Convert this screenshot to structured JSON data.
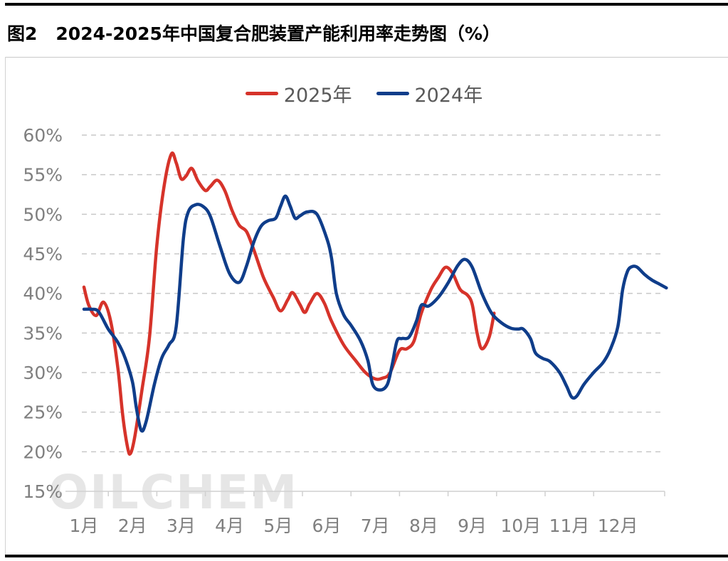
{
  "header": {
    "figure_number": "图2",
    "title": "2024-2025年中国复合肥装置产能利用率走势图（%）"
  },
  "watermark": "OILCHEM",
  "chart_data": {
    "type": "line",
    "title": "2024-2025年中国复合肥装置产能利用率走势图（%）",
    "x_tick_labels": [
      "1月",
      "2月",
      "3月",
      "4月",
      "5月",
      "6月",
      "7月",
      "8月",
      "9月",
      "10月",
      "11月",
      "12月"
    ],
    "y_tick_labels": [
      "15%",
      "20%",
      "25%",
      "30%",
      "35%",
      "40%",
      "45%",
      "50%",
      "55%",
      "60%"
    ],
    "ylim": [
      15,
      60
    ],
    "xlim": [
      1,
      13
    ],
    "x_unit": "month",
    "grid": "horizontal dashed",
    "legend_position": "top",
    "series": [
      {
        "name": "2025年",
        "color": "#d6332a",
        "points": [
          [
            1.0,
            40.8
          ],
          [
            1.1,
            38.5
          ],
          [
            1.25,
            37.2
          ],
          [
            1.4,
            38.9
          ],
          [
            1.55,
            36.5
          ],
          [
            1.7,
            30.5
          ],
          [
            1.8,
            24.5
          ],
          [
            1.9,
            20.5
          ],
          [
            1.96,
            19.8
          ],
          [
            2.05,
            22.0
          ],
          [
            2.2,
            28.0
          ],
          [
            2.35,
            34.5
          ],
          [
            2.5,
            46.0
          ],
          [
            2.65,
            53.5
          ],
          [
            2.8,
            57.6
          ],
          [
            2.9,
            56.5
          ],
          [
            3.0,
            54.5
          ],
          [
            3.1,
            54.8
          ],
          [
            3.22,
            55.8
          ],
          [
            3.35,
            54.2
          ],
          [
            3.5,
            53.0
          ],
          [
            3.6,
            53.5
          ],
          [
            3.75,
            54.3
          ],
          [
            3.9,
            53.0
          ],
          [
            4.05,
            50.5
          ],
          [
            4.2,
            48.6
          ],
          [
            4.35,
            47.8
          ],
          [
            4.5,
            45.5
          ],
          [
            4.7,
            42.0
          ],
          [
            4.9,
            39.5
          ],
          [
            5.05,
            37.8
          ],
          [
            5.2,
            39.2
          ],
          [
            5.3,
            40.1
          ],
          [
            5.45,
            38.6
          ],
          [
            5.55,
            37.6
          ],
          [
            5.65,
            38.7
          ],
          [
            5.8,
            40.0
          ],
          [
            5.95,
            38.8
          ],
          [
            6.1,
            36.5
          ],
          [
            6.35,
            33.5
          ],
          [
            6.6,
            31.5
          ],
          [
            6.8,
            30.0
          ],
          [
            7.0,
            29.2
          ],
          [
            7.15,
            29.3
          ],
          [
            7.3,
            29.9
          ],
          [
            7.5,
            32.8
          ],
          [
            7.65,
            33.0
          ],
          [
            7.8,
            34.0
          ],
          [
            7.95,
            37.5
          ],
          [
            8.15,
            40.5
          ],
          [
            8.3,
            42.0
          ],
          [
            8.45,
            43.3
          ],
          [
            8.6,
            42.5
          ],
          [
            8.75,
            40.5
          ],
          [
            8.9,
            39.8
          ],
          [
            9.0,
            38.6
          ],
          [
            9.1,
            35.0
          ],
          [
            9.2,
            33.0
          ],
          [
            9.35,
            34.5
          ],
          [
            9.45,
            37.5
          ]
        ]
      },
      {
        "name": "2024年",
        "color": "#0f3d8a",
        "points": [
          [
            1.0,
            38.0
          ],
          [
            1.15,
            38.0
          ],
          [
            1.3,
            37.7
          ],
          [
            1.5,
            35.5
          ],
          [
            1.7,
            33.8
          ],
          [
            1.85,
            31.8
          ],
          [
            2.0,
            28.8
          ],
          [
            2.08,
            25.5
          ],
          [
            2.18,
            22.7
          ],
          [
            2.28,
            23.8
          ],
          [
            2.45,
            28.5
          ],
          [
            2.6,
            31.8
          ],
          [
            2.75,
            33.5
          ],
          [
            2.9,
            35.8
          ],
          [
            3.05,
            47.0
          ],
          [
            3.15,
            50.3
          ],
          [
            3.3,
            51.2
          ],
          [
            3.45,
            51.0
          ],
          [
            3.6,
            49.8
          ],
          [
            3.8,
            46.0
          ],
          [
            4.0,
            42.5
          ],
          [
            4.2,
            41.4
          ],
          [
            4.35,
            43.5
          ],
          [
            4.5,
            46.5
          ],
          [
            4.65,
            48.5
          ],
          [
            4.8,
            49.2
          ],
          [
            4.95,
            49.5
          ],
          [
            5.05,
            51.0
          ],
          [
            5.15,
            52.3
          ],
          [
            5.25,
            51.0
          ],
          [
            5.35,
            49.5
          ],
          [
            5.45,
            49.8
          ],
          [
            5.6,
            50.3
          ],
          [
            5.8,
            50.0
          ],
          [
            6.0,
            47.0
          ],
          [
            6.1,
            44.5
          ],
          [
            6.2,
            40.0
          ],
          [
            6.35,
            37.3
          ],
          [
            6.5,
            36.0
          ],
          [
            6.7,
            34.0
          ],
          [
            6.85,
            31.5
          ],
          [
            6.95,
            28.5
          ],
          [
            7.1,
            27.8
          ],
          [
            7.25,
            28.5
          ],
          [
            7.35,
            31.0
          ],
          [
            7.45,
            34.0
          ],
          [
            7.55,
            34.3
          ],
          [
            7.7,
            34.5
          ],
          [
            7.85,
            36.5
          ],
          [
            7.95,
            38.5
          ],
          [
            8.1,
            38.4
          ],
          [
            8.3,
            39.5
          ],
          [
            8.5,
            41.3
          ],
          [
            8.7,
            43.5
          ],
          [
            8.85,
            44.3
          ],
          [
            9.0,
            43.3
          ],
          [
            9.2,
            40.0
          ],
          [
            9.4,
            37.5
          ],
          [
            9.6,
            36.3
          ],
          [
            9.8,
            35.6
          ],
          [
            9.95,
            35.5
          ],
          [
            10.05,
            35.5
          ],
          [
            10.2,
            34.3
          ],
          [
            10.3,
            32.5
          ],
          [
            10.45,
            31.8
          ],
          [
            10.6,
            31.4
          ],
          [
            10.8,
            30.0
          ],
          [
            10.95,
            28.2
          ],
          [
            11.05,
            26.9
          ],
          [
            11.15,
            27.0
          ],
          [
            11.3,
            28.5
          ],
          [
            11.5,
            30.0
          ],
          [
            11.7,
            31.3
          ],
          [
            11.85,
            33.0
          ],
          [
            12.0,
            35.8
          ],
          [
            12.1,
            40.5
          ],
          [
            12.2,
            42.8
          ],
          [
            12.3,
            43.4
          ],
          [
            12.4,
            43.3
          ],
          [
            12.55,
            42.4
          ],
          [
            12.7,
            41.7
          ],
          [
            12.85,
            41.2
          ],
          [
            13.0,
            40.7
          ]
        ]
      }
    ]
  }
}
